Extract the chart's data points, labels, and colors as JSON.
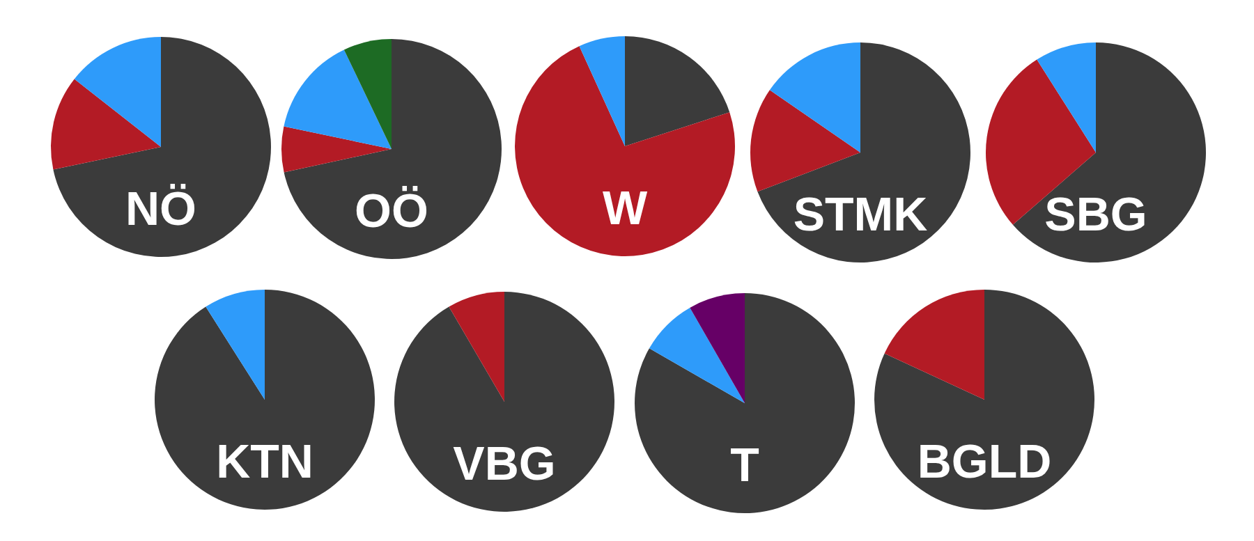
{
  "chart_data": [
    {
      "type": "pie",
      "title": "NÖ",
      "categories": [
        null,
        null,
        null
      ],
      "values": [
        71.7,
        13.9,
        14.4
      ],
      "colors": [
        "#3b3b3b",
        "#b31b25",
        "#2e9bfa"
      ]
    },
    {
      "type": "pie",
      "title": "OÖ",
      "categories": [
        null,
        null,
        null,
        null
      ],
      "values": [
        71.6,
        6.7,
        14.6,
        7.1
      ],
      "colors": [
        "#3b3b3b",
        "#b31b25",
        "#2e9bfa",
        "#1d6b24"
      ]
    },
    {
      "type": "pie",
      "title": "W",
      "categories": [
        null,
        null,
        null
      ],
      "values": [
        20,
        73.2,
        6.8
      ],
      "colors": [
        "#3b3b3b",
        "#b31b25",
        "#2e9bfa"
      ]
    },
    {
      "type": "pie",
      "title": "STMK",
      "categories": [
        null,
        null,
        null
      ],
      "values": [
        69.2,
        15.4,
        15.4
      ],
      "colors": [
        "#3b3b3b",
        "#b31b25",
        "#2e9bfa"
      ]
    },
    {
      "type": "pie",
      "title": "SBG",
      "categories": [
        null,
        null,
        null
      ],
      "values": [
        63.6,
        27.4,
        9
      ],
      "colors": [
        "#3b3b3b",
        "#b31b25",
        "#2e9bfa"
      ]
    },
    {
      "type": "pie",
      "title": "KTN",
      "categories": [
        null,
        null
      ],
      "values": [
        91,
        9
      ],
      "colors": [
        "#3b3b3b",
        "#2e9bfa"
      ]
    },
    {
      "type": "pie",
      "title": "VBG",
      "categories": [
        null,
        null
      ],
      "values": [
        91.6,
        8.4
      ],
      "colors": [
        "#3b3b3b",
        "#b31b25"
      ]
    },
    {
      "type": "pie",
      "title": "T",
      "categories": [
        null,
        null,
        null
      ],
      "values": [
        83.3,
        8.4,
        8.3
      ],
      "colors": [
        "#3b3b3b",
        "#2e9bfa",
        "#660066"
      ]
    },
    {
      "type": "pie",
      "title": "BGLD",
      "categories": [
        null,
        null
      ],
      "values": [
        81.9,
        18.1
      ],
      "colors": [
        "#3b3b3b",
        "#b31b25"
      ]
    }
  ]
}
